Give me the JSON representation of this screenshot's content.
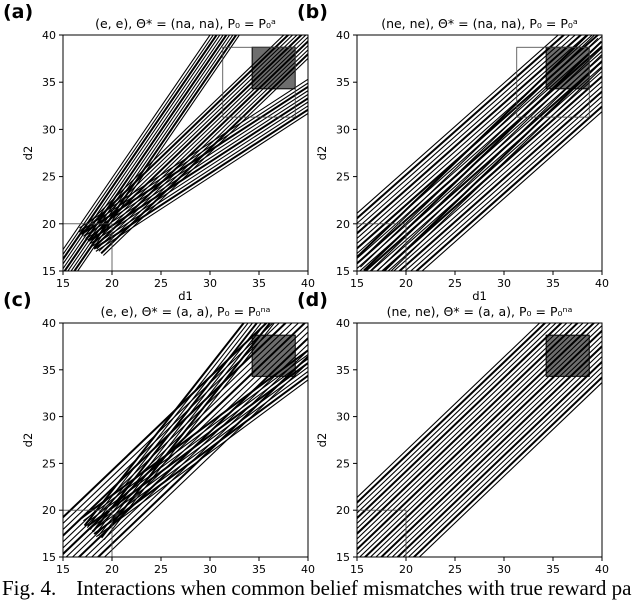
{
  "caption": {
    "label": "Fig. 4.",
    "text": "Interactions when common belief mismatches with true reward pa"
  },
  "chart_data": [
    {
      "type": "line",
      "panel_label": "(a)",
      "title": "(e, e), Θ* = (na, na), P₀ = P₀ᵃ",
      "xlabel": "d1",
      "ylabel": "d2",
      "xlim": [
        15,
        40
      ],
      "ylim": [
        15,
        40
      ],
      "xticks": [
        "15",
        "20",
        "25",
        "30",
        "35",
        "40"
      ],
      "yticks": [
        "15",
        "20",
        "25",
        "30",
        "35",
        "40"
      ],
      "grid": false,
      "start_box": [
        15,
        20,
        15,
        20
      ],
      "outer_box": [
        31.3,
        38.7,
        31.3,
        38.7
      ],
      "goal_box": [
        34.3,
        38.7,
        34.3,
        38.7
      ],
      "bundles": [
        {
          "from": [
            20,
            20
          ],
          "to": [
            39.5,
            39.5
          ],
          "spread": 3.5,
          "count": 12
        },
        {
          "from": [
            15,
            15
          ],
          "to": [
            31.5,
            40
          ],
          "spread": 2.5,
          "count": 10
        },
        {
          "from": [
            20,
            20
          ],
          "to": [
            40,
            33.5
          ],
          "spread": 3.0,
          "count": 10
        }
      ]
    },
    {
      "type": "line",
      "panel_label": "(b)",
      "title": "(ne, ne), Θ* = (na, na), P₀ = P₀ᵃ",
      "xlabel": "d1",
      "ylabel": "d2",
      "xlim": [
        15,
        40
      ],
      "ylim": [
        15,
        40
      ],
      "xticks": [
        "15",
        "20",
        "25",
        "30",
        "35",
        "40"
      ],
      "yticks": [
        "15",
        "20",
        "25",
        "30",
        "35",
        "40"
      ],
      "grid": false,
      "start_box": [
        15,
        20,
        15,
        20
      ],
      "outer_box": [
        31.3,
        38.7,
        31.3,
        38.7
      ],
      "goal_box": [
        34.3,
        38.7,
        34.3,
        38.7
      ],
      "bundles": [
        {
          "from": [
            15,
            15
          ],
          "to": [
            40,
            38
          ],
          "spread": 9.0,
          "count": 24
        },
        {
          "from": [
            18,
            17
          ],
          "to": [
            38,
            37
          ],
          "spread": 3.5,
          "count": 8
        }
      ]
    },
    {
      "type": "line",
      "panel_label": "(c)",
      "title": "(e, e), Θ* = (a, a), P₀ = P₀ⁿᵃ",
      "xlabel": "d1",
      "ylabel": "d2",
      "xlim": [
        15,
        40
      ],
      "ylim": [
        15,
        40
      ],
      "xticks": [
        "15",
        "20",
        "25",
        "30",
        "35",
        "40"
      ],
      "yticks": [
        "15",
        "20",
        "25",
        "30",
        "35",
        "40"
      ],
      "grid": false,
      "start_box": [
        15,
        20,
        15,
        20
      ],
      "outer_box": [],
      "goal_box": [
        34.3,
        38.7,
        34.3,
        38.7
      ],
      "bundles": [
        {
          "from": [
            15,
            15
          ],
          "to": [
            40,
            40
          ],
          "spread": 6.0,
          "count": 14
        },
        {
          "from": [
            20,
            20
          ],
          "to": [
            35,
            40
          ],
          "spread": 2.5,
          "count": 8
        },
        {
          "from": [
            20,
            20
          ],
          "to": [
            40,
            35.5
          ],
          "spread": 2.5,
          "count": 8
        }
      ]
    },
    {
      "type": "line",
      "panel_label": "(d)",
      "title": "(ne, ne), Θ* = (a, a), P₀ = P₀ⁿᵃ",
      "xlabel": "d1",
      "ylabel": "d2",
      "xlim": [
        15,
        40
      ],
      "ylim": [
        15,
        40
      ],
      "xticks": [
        "15",
        "20",
        "25",
        "30",
        "35",
        "40"
      ],
      "yticks": [
        "15",
        "20",
        "25",
        "30",
        "35",
        "40"
      ],
      "grid": false,
      "start_box": [
        15,
        20,
        15,
        20
      ],
      "outer_box": [],
      "goal_box": [
        34.3,
        38.7,
        34.3,
        38.7
      ],
      "bundles": [
        {
          "from": [
            15,
            15
          ],
          "to": [
            39,
            39
          ],
          "spread": 9.0,
          "count": 24
        }
      ]
    }
  ]
}
